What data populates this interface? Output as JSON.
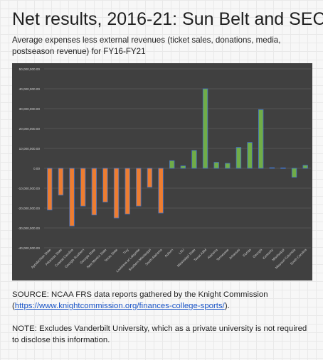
{
  "header": {
    "title": "Net results, 2016-21: Sun Belt and SEC",
    "subtitle": "Average expenses less external revenues (ticket sales, donations, media, postseason revenue) for FY16-FY21"
  },
  "footer": {
    "source_prefix": "SOURCE: NCAA FRS data reports gathered by the Knight Commission (",
    "source_link": "https://www.knightcommission.org/finances-college-sports/",
    "source_suffix": ").",
    "note": "NOTE: Excludes Vanderbilt University, which as a private university is not required to disclose this information."
  },
  "colors": {
    "plot_background": "#404040",
    "gridline": "#555555",
    "sun_belt_bar": "#ed7d31",
    "sec_bar": "#70ad47",
    "bar_outline": "#4472c4",
    "tick_text": "#cfcfcf"
  },
  "chart_data": {
    "type": "bar",
    "title": "",
    "xlabel": "",
    "ylabel": "",
    "ylim": [
      -40000000,
      50000000
    ],
    "yticks": [
      50000000,
      40000000,
      30000000,
      20000000,
      10000000,
      0,
      -10000000,
      -20000000,
      -30000000,
      -40000000
    ],
    "ytick_labels": [
      "50,000,000.00",
      "40,000,000.00",
      "30,000,000.00",
      "20,000,000.00",
      "10,000,000.00",
      "0.00",
      "-10,000,000.00",
      "-20,000,000.00",
      "-30,000,000.00",
      "-40,000,000.00"
    ],
    "grid": true,
    "legend": "none",
    "categories": [
      "Appalachian State",
      "Arkansas State",
      "Coastal Carolina",
      "Georgia Southern",
      "Georgia State",
      "New Mexico State",
      "Texas State",
      "Troy",
      "Louisiana at Lafayette",
      "Southern Mississippi",
      "South Alabama",
      "Auburn",
      "LSU",
      "Mississippi State",
      "Texas A&M",
      "Alabama",
      "Tennessee",
      "Arkansas",
      "Florida",
      "Georgia",
      "Kentucky",
      "Mississippi",
      "Missouri-Columbia",
      "South Carolina"
    ],
    "values": [
      -21000000,
      -13500000,
      -29000000,
      -19000000,
      -23500000,
      -17000000,
      -25000000,
      -23000000,
      -19000000,
      -9500000,
      -22500000,
      3800000,
      1200000,
      9000000,
      40000000,
      3000000,
      2500000,
      10500000,
      13000000,
      29500000,
      300000,
      200000,
      -4500000,
      1500000
    ],
    "conference": [
      "Sun Belt",
      "Sun Belt",
      "Sun Belt",
      "Sun Belt",
      "Sun Belt",
      "Sun Belt",
      "Sun Belt",
      "Sun Belt",
      "Sun Belt",
      "Sun Belt",
      "Sun Belt",
      "SEC",
      "SEC",
      "SEC",
      "SEC",
      "SEC",
      "SEC",
      "SEC",
      "SEC",
      "SEC",
      "SEC",
      "SEC",
      "SEC",
      "SEC"
    ]
  }
}
